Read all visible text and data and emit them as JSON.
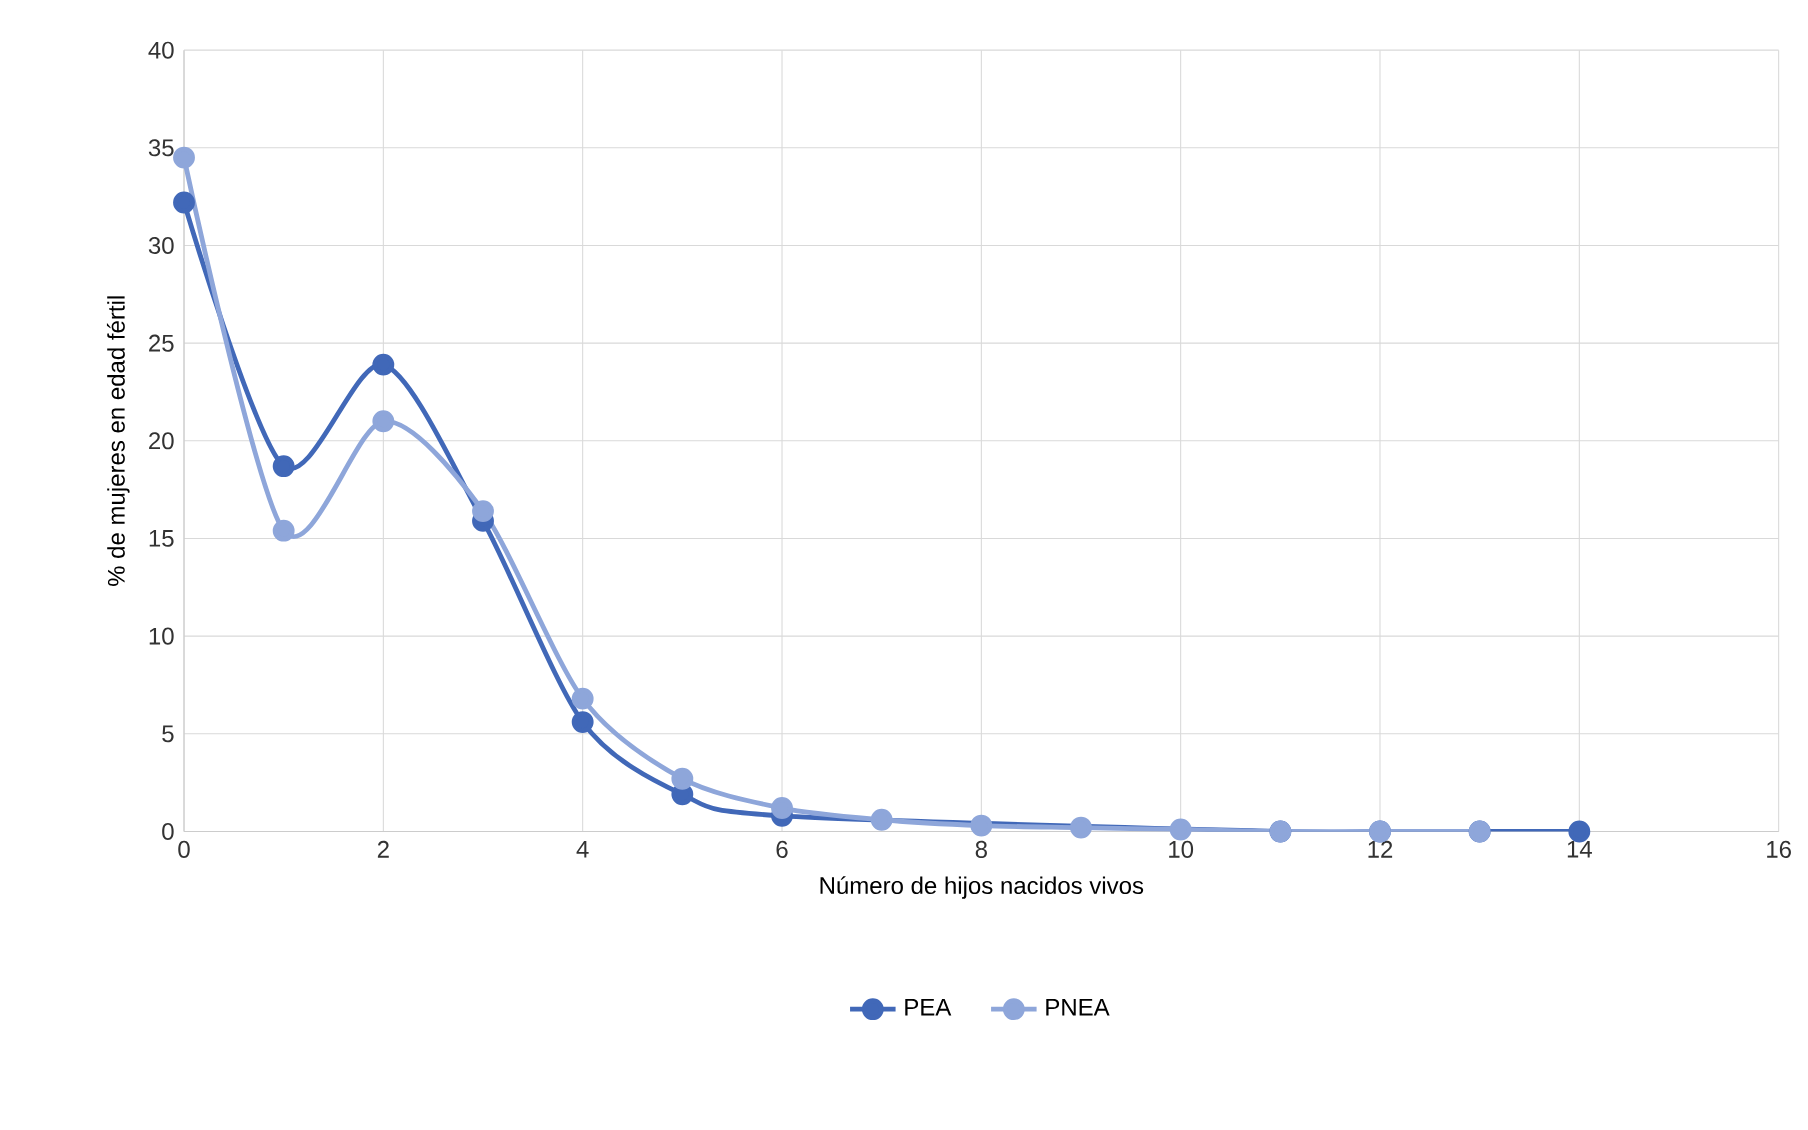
{
  "chart_data": {
    "type": "line",
    "xlabel": "Número  de hijos nacidos vivos",
    "ylabel": "% de mujeres en edad fértil",
    "xlim": [
      0,
      16
    ],
    "xticks": [
      0,
      2,
      4,
      6,
      8,
      10,
      12,
      14,
      16
    ],
    "ylim": [
      0,
      40
    ],
    "yticks": [
      0,
      5,
      10,
      15,
      20,
      25,
      30,
      35,
      40
    ],
    "grid": true,
    "legend": "bottom",
    "marker": "circle",
    "line_style": "solid",
    "series": [
      {
        "name": "PEA",
        "color": "#4168b8",
        "x": [
          0,
          1,
          2,
          3,
          4,
          5,
          6,
          7,
          8,
          9,
          10,
          11,
          12,
          13,
          14
        ],
        "values": [
          32.2,
          18.7,
          23.9,
          15.9,
          5.6,
          1.9,
          0.8,
          null,
          null,
          null,
          null,
          0,
          0,
          0,
          0
        ]
      },
      {
        "name": "PNEA",
        "color": "#8ea6da",
        "x": [
          0,
          1,
          2,
          3,
          4,
          5,
          6,
          7,
          8,
          9,
          10,
          11,
          12,
          13
        ],
        "values": [
          34.5,
          15.4,
          21.0,
          16.4,
          6.8,
          2.7,
          1.2,
          0.6,
          0.3,
          0.2,
          0.1,
          0,
          0,
          0
        ]
      }
    ]
  }
}
